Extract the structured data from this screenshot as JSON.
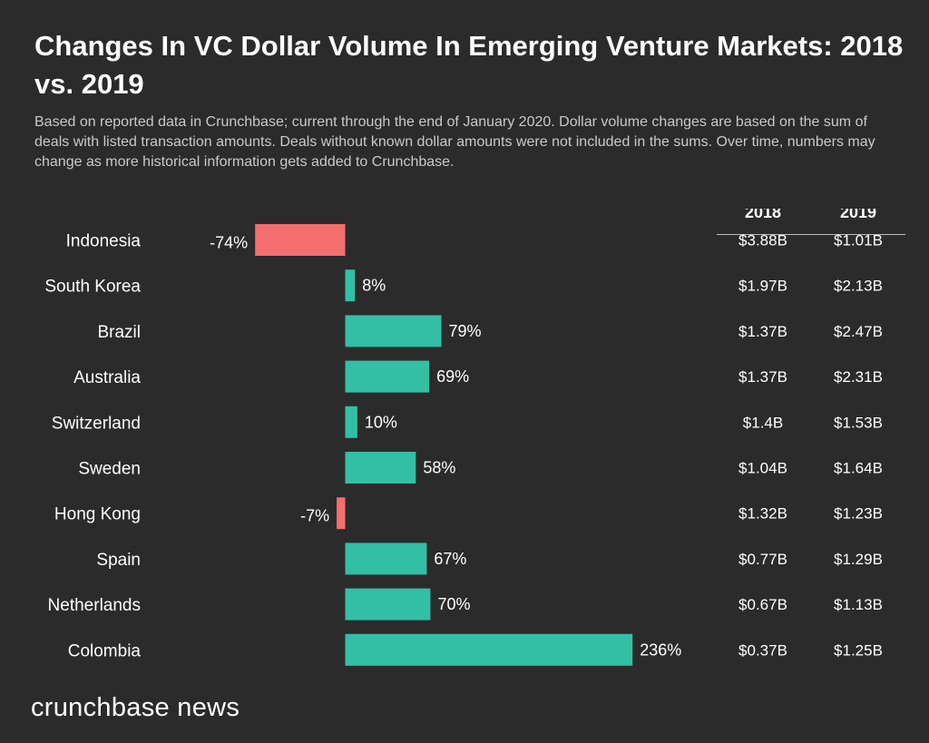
{
  "title": "Changes In VC Dollar Volume In Emerging Venture Markets: 2018 vs. 2019",
  "subtitle": "Based on reported data in Crunchbase; current through the end of January 2020. Dollar volume changes are based on the sum of deals with listed transaction amounts. Deals without known dollar amounts were not included in the sums. Over time, numbers may change as more historical information gets added to Crunchbase.",
  "brand": "crunchbase news",
  "colors": {
    "positive": "#33bfa3",
    "negative": "#f36e6e",
    "background": "#2b2b2b"
  },
  "chart_data": {
    "type": "bar",
    "orientation": "horizontal",
    "categories": [
      "Indonesia",
      "South Korea",
      "Brazil",
      "Australia",
      "Switzerland",
      "Sweden",
      "Hong Kong",
      "Spain",
      "Netherlands",
      "Colombia"
    ],
    "values": [
      -74,
      8,
      79,
      69,
      10,
      58,
      -7,
      67,
      70,
      236
    ],
    "value_labels": [
      "-74%",
      "8%",
      "79%",
      "69%",
      "10%",
      "58%",
      "-7%",
      "67%",
      "70%",
      "236%"
    ],
    "grid": false,
    "table": {
      "headers": [
        "2018",
        "2019"
      ],
      "rows": [
        [
          "$3.88B",
          "$1.01B"
        ],
        [
          "$1.97B",
          "$2.13B"
        ],
        [
          "$1.37B",
          "$2.47B"
        ],
        [
          "$1.37B",
          "$2.31B"
        ],
        [
          "$1.4B",
          "$1.53B"
        ],
        [
          "$1.04B",
          "$1.64B"
        ],
        [
          "$1.32B",
          "$1.23B"
        ],
        [
          "$0.77B",
          "$1.29B"
        ],
        [
          "$0.67B",
          "$1.13B"
        ],
        [
          "$0.37B",
          "$1.25B"
        ]
      ]
    }
  }
}
